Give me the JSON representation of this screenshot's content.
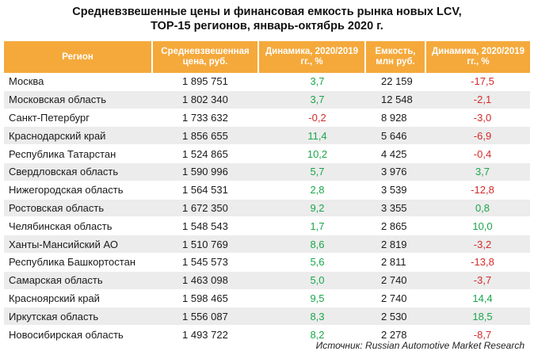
{
  "title": {
    "line1": "Средневзвешенные цены и финансовая емкость рынка новых LCV,",
    "line2": "ТОР-15 регионов, январь-октябрь 2020 г."
  },
  "table": {
    "headers": {
      "region": "Регион",
      "price": "Средневзвешенная цена, руб.",
      "price_dyn": "Динамика, 2020/2019 гг., %",
      "capacity": "Емкость, млн руб.",
      "capacity_dyn": "Динамика, 2020/2019 гг., %"
    },
    "rows": [
      {
        "region": "Москва",
        "price": "1 895 751",
        "price_dyn": "3,7",
        "capacity": "22 159",
        "capacity_dyn": "-17,5"
      },
      {
        "region": "Московская область",
        "price": "1 802 340",
        "price_dyn": "3,7",
        "capacity": "12 548",
        "capacity_dyn": "-2,1"
      },
      {
        "region": "Санкт-Петербург",
        "price": "1 733 632",
        "price_dyn": "-0,2",
        "capacity": "8 928",
        "capacity_dyn": "-3,0"
      },
      {
        "region": "Краснодарский край",
        "price": "1 856 655",
        "price_dyn": "11,4",
        "capacity": "5 646",
        "capacity_dyn": "-6,9"
      },
      {
        "region": "Республика Татарстан",
        "price": "1 524 865",
        "price_dyn": "10,2",
        "capacity": "4 425",
        "capacity_dyn": "-0,4"
      },
      {
        "region": "Свердловская область",
        "price": "1 590 996",
        "price_dyn": "5,7",
        "capacity": "3 976",
        "capacity_dyn": "3,7"
      },
      {
        "region": "Нижегородская область",
        "price": "1 564 531",
        "price_dyn": "2,8",
        "capacity": "3 539",
        "capacity_dyn": "-12,8"
      },
      {
        "region": "Ростовская область",
        "price": "1 672 350",
        "price_dyn": "9,2",
        "capacity": "3 355",
        "capacity_dyn": "0,8"
      },
      {
        "region": "Челябинская область",
        "price": "1 548 543",
        "price_dyn": "1,7",
        "capacity": "2 865",
        "capacity_dyn": "10,0"
      },
      {
        "region": "Ханты-Мансийский АО",
        "price": "1 510 769",
        "price_dyn": "8,6",
        "capacity": "2 819",
        "capacity_dyn": "-3,2"
      },
      {
        "region": "Республика Башкортостан",
        "price": "1 545 573",
        "price_dyn": "5,6",
        "capacity": "2 811",
        "capacity_dyn": "-13,8"
      },
      {
        "region": "Самарская область",
        "price": "1 463 098",
        "price_dyn": "5,0",
        "capacity": "2 740",
        "capacity_dyn": "-3,7"
      },
      {
        "region": "Красноярский край",
        "price": "1 598 465",
        "price_dyn": "9,5",
        "capacity": "2 740",
        "capacity_dyn": "14,4"
      },
      {
        "region": "Иркутская область",
        "price": "1 556 087",
        "price_dyn": "8,3",
        "capacity": "2 530",
        "capacity_dyn": "18,5"
      },
      {
        "region": "Новосибирская область",
        "price": "1 493 722",
        "price_dyn": "8,2",
        "capacity": "2 278",
        "capacity_dyn": "-8,7"
      }
    ]
  },
  "colors": {
    "header_bg": "#f5a93b",
    "positive": "#1aa64b",
    "negative": "#d42a2a",
    "stripe": "#ececec"
  },
  "source": "Источник: Russian Automotive Market Research"
}
